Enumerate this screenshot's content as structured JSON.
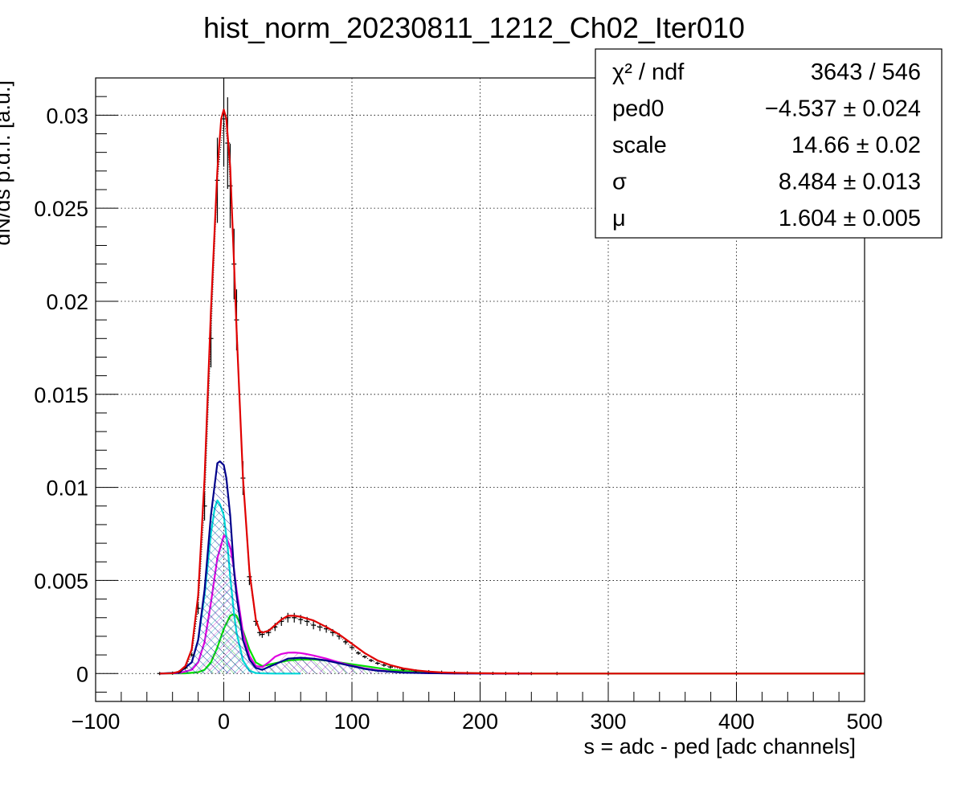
{
  "chart_data": {
    "type": "line",
    "title": "hist_norm_20230811_1212_Ch02_Iter010",
    "xlabel": "s = adc - ped [adc channels]",
    "ylabel": "dN/ds p.d.f. [a.u.]",
    "xlim": [
      -100,
      500
    ],
    "ylim": [
      -0.0015,
      0.032
    ],
    "grid": true,
    "x_ticks": [
      {
        "value": -100,
        "label": "−100"
      },
      {
        "value": 0,
        "label": "0"
      },
      {
        "value": 100,
        "label": "100"
      },
      {
        "value": 200,
        "label": "200"
      },
      {
        "value": 300,
        "label": "300"
      },
      {
        "value": 400,
        "label": "400"
      },
      {
        "value": 500,
        "label": "500"
      }
    ],
    "y_ticks": [
      {
        "value": 0,
        "label": "0"
      },
      {
        "value": 0.005,
        "label": "0.005"
      },
      {
        "value": 0.01,
        "label": "0.01"
      },
      {
        "value": 0.015,
        "label": "0.015"
      },
      {
        "value": 0.02,
        "label": "0.02"
      },
      {
        "value": 0.025,
        "label": "0.025"
      },
      {
        "value": 0.03,
        "label": "0.03"
      }
    ],
    "stats_box": {
      "placement": "top-right",
      "rows": [
        {
          "label": "χ² / ndf",
          "value": "3643 / 546"
        },
        {
          "label": "ped0",
          "value": "−4.537 ± 0.024"
        },
        {
          "label": "scale",
          "value": "14.66 ± 0.02"
        },
        {
          "label": "σ",
          "value": "8.484 ± 0.013"
        },
        {
          "label": "μ",
          "value": "1.604 ± 0.005"
        }
      ]
    },
    "series": [
      {
        "color": "#000000",
        "style": "histogram",
        "x": [
          -50,
          -40,
          -35,
          -30,
          -25,
          -20,
          -15,
          -10,
          -5,
          0,
          3,
          5,
          8,
          10,
          15,
          20,
          25,
          28,
          30,
          35,
          40,
          45,
          50,
          55,
          60,
          65,
          70,
          75,
          80,
          85,
          90,
          95,
          100,
          105,
          110,
          115,
          120,
          125,
          130,
          140,
          150,
          160,
          170,
          180,
          190,
          200,
          210,
          220,
          230,
          240,
          260,
          300,
          400,
          500
        ],
        "y": [
          0,
          2e-05,
          8e-05,
          0.0003,
          0.001,
          0.0035,
          0.009,
          0.018,
          0.0265,
          0.0298,
          0.0285,
          0.0262,
          0.022,
          0.019,
          0.0105,
          0.0052,
          0.0028,
          0.0022,
          0.0021,
          0.0022,
          0.0025,
          0.0028,
          0.003,
          0.003,
          0.0029,
          0.0028,
          0.0026,
          0.0025,
          0.0024,
          0.0022,
          0.002,
          0.0017,
          0.0014,
          0.0011,
          0.0009,
          0.0007,
          0.00055,
          0.00045,
          0.00035,
          0.00022,
          0.00014,
          0.0001,
          7e-05,
          5e-05,
          3e-05,
          2e-05,
          1e-05,
          5e-06,
          0,
          0,
          0,
          0,
          0,
          0
        ]
      },
      {
        "color": "#e00000",
        "style": "line",
        "x": [
          -50,
          -40,
          -35,
          -30,
          -25,
          -20,
          -15,
          -10,
          -5,
          -2,
          0,
          2,
          5,
          8,
          10,
          15,
          20,
          25,
          28,
          30,
          35,
          40,
          45,
          50,
          55,
          60,
          65,
          70,
          80,
          90,
          100,
          110,
          120,
          130,
          140,
          150,
          160,
          170,
          180,
          200,
          220,
          240,
          300,
          400,
          500
        ],
        "y": [
          0,
          2e-05,
          0.0001,
          0.0004,
          0.0013,
          0.0042,
          0.0105,
          0.0195,
          0.027,
          0.0298,
          0.0303,
          0.0298,
          0.0272,
          0.022,
          0.0185,
          0.0105,
          0.0055,
          0.0029,
          0.0023,
          0.0022,
          0.0023,
          0.0026,
          0.0029,
          0.0031,
          0.0031,
          0.00305,
          0.00295,
          0.00285,
          0.0025,
          0.0021,
          0.0016,
          0.0011,
          0.0007,
          0.00045,
          0.00028,
          0.00017,
          0.0001,
          6e-05,
          4e-05,
          1.5e-05,
          5e-06,
          0,
          0,
          0,
          0
        ]
      },
      {
        "color": "#00008b",
        "style": "line-hatched",
        "x": [
          -50,
          -35,
          -25,
          -20,
          -15,
          -10,
          -5,
          -3,
          0,
          2,
          5,
          8,
          10,
          15,
          20,
          25,
          30,
          35,
          40,
          50,
          60,
          70,
          80,
          90,
          100,
          110,
          120,
          130,
          140,
          160,
          180,
          240
        ],
        "y": [
          0,
          5e-05,
          0.0006,
          0.0018,
          0.0045,
          0.0085,
          0.0113,
          0.0114,
          0.0112,
          0.0105,
          0.0085,
          0.0055,
          0.0042,
          0.0018,
          0.00075,
          0.0003,
          0.0002,
          0.00035,
          0.0005,
          0.0008,
          0.00085,
          0.0008,
          0.0007,
          0.00055,
          0.0004,
          0.00025,
          0.00015,
          0.0001,
          5e-05,
          2e-05,
          5e-06,
          0
        ]
      },
      {
        "color": "#00d8d8",
        "style": "line-hatched",
        "x": [
          -50,
          -35,
          -25,
          -20,
          -15,
          -10,
          -7,
          -5,
          -3,
          0,
          3,
          5,
          8,
          10,
          15,
          20,
          25,
          30,
          40,
          60
        ],
        "y": [
          0,
          5e-05,
          0.0006,
          0.0018,
          0.0042,
          0.0075,
          0.0089,
          0.0093,
          0.0091,
          0.0085,
          0.0068,
          0.0052,
          0.0032,
          0.0022,
          0.0007,
          0.00015,
          3e-05,
          1e-05,
          0,
          0
        ]
      },
      {
        "color": "#e000e0",
        "style": "line-hatched",
        "x": [
          -50,
          -35,
          -25,
          -20,
          -15,
          -10,
          -5,
          0,
          2,
          5,
          8,
          10,
          15,
          20,
          25,
          30,
          35,
          40,
          45,
          50,
          55,
          60,
          65,
          70,
          80,
          90,
          100,
          110,
          120,
          130,
          140,
          160,
          180,
          240
        ],
        "y": [
          0,
          2e-05,
          0.0002,
          0.0006,
          0.0017,
          0.0038,
          0.0062,
          0.0074,
          0.0073,
          0.0068,
          0.0056,
          0.0045,
          0.0022,
          0.00095,
          0.0004,
          0.00035,
          0.0006,
          0.0009,
          0.00105,
          0.00112,
          0.00113,
          0.0011,
          0.00104,
          0.00097,
          0.0008,
          0.0006,
          0.00042,
          0.00028,
          0.00018,
          0.0001,
          6e-05,
          2e-05,
          5e-06,
          0
        ]
      },
      {
        "color": "#00e000",
        "style": "line-hatched",
        "x": [
          -50,
          -30,
          -20,
          -15,
          -10,
          -5,
          0,
          5,
          8,
          10,
          15,
          20,
          25,
          30,
          40,
          50,
          60,
          70,
          80,
          90,
          100,
          110,
          120,
          130,
          140,
          160,
          180,
          200,
          220,
          240,
          300,
          400,
          500
        ],
        "y": [
          0,
          1e-05,
          7e-05,
          0.0002,
          0.0006,
          0.0014,
          0.0024,
          0.0031,
          0.0032,
          0.0031,
          0.0023,
          0.0013,
          0.0006,
          0.0004,
          0.00055,
          0.0007,
          0.00075,
          0.00075,
          0.0007,
          0.0006,
          0.0005,
          0.0004,
          0.0003,
          0.0002,
          0.00014,
          6e-05,
          2e-05,
          1e-05,
          5e-06,
          0,
          0,
          0,
          0
        ]
      }
    ]
  }
}
